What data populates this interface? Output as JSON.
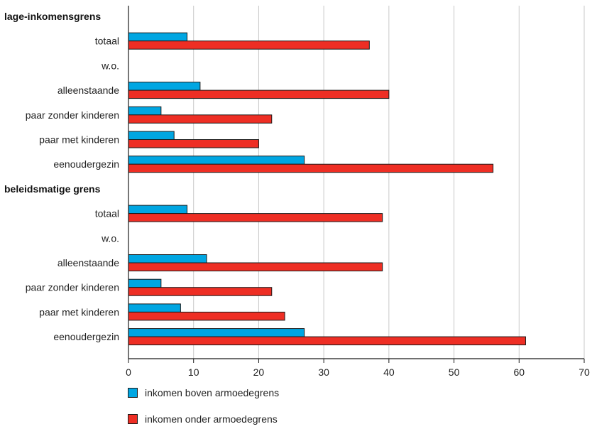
{
  "chart_data": {
    "type": "bar",
    "orientation": "horizontal",
    "xlim": [
      0,
      70
    ],
    "xticks": [
      0,
      10,
      20,
      30,
      40,
      50,
      60,
      70
    ],
    "grid": true,
    "legend_position": "bottom",
    "colors": {
      "above": "#00a6e2",
      "below": "#ee2e24"
    },
    "rows": [
      {
        "label": "lage-inkomensgrens",
        "header": true
      },
      {
        "label": "totaal",
        "values": [
          9,
          37
        ]
      },
      {
        "label": "w.o.",
        "values": []
      },
      {
        "label": "alleenstaande",
        "values": [
          11,
          40
        ]
      },
      {
        "label": "paar zonder kinderen",
        "values": [
          5,
          22
        ]
      },
      {
        "label": "paar met kinderen",
        "values": [
          7,
          20
        ]
      },
      {
        "label": "eenoudergezin",
        "values": [
          27,
          56
        ]
      },
      {
        "label": "beleidsmatige grens",
        "header": true
      },
      {
        "label": "totaal",
        "values": [
          9,
          39
        ]
      },
      {
        "label": "w.o.",
        "values": []
      },
      {
        "label": "alleenstaande",
        "values": [
          12,
          39
        ]
      },
      {
        "label": "paar zonder kinderen",
        "values": [
          5,
          22
        ]
      },
      {
        "label": "paar met kinderen",
        "values": [
          8,
          24
        ]
      },
      {
        "label": "eenoudergezin",
        "values": [
          27,
          61
        ]
      }
    ],
    "series": [
      {
        "name": "inkomen boven armoedegrens"
      },
      {
        "name": "inkomen onder armoedegrens"
      }
    ]
  }
}
